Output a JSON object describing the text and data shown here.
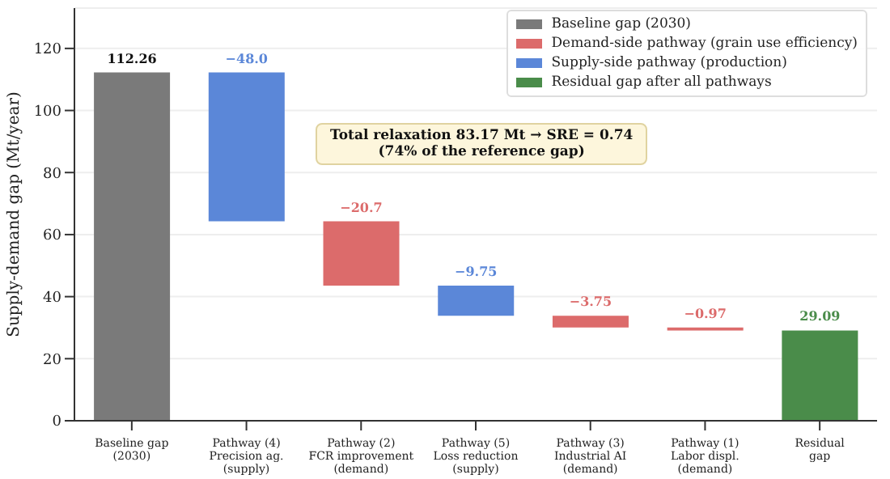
{
  "chart_data": {
    "type": "bar",
    "ylabel": "Supply-demand gap (Mt/year)",
    "categories": [
      "Baseline gap\n(2030)",
      "Pathway (4)\nPrecision ag.\n(supply)",
      "Pathway (2)\nFCR improvement\n(demand)",
      "Pathway (5)\nLoss reduction\n(supply)",
      "Pathway (3)\nIndustrial AI\n(demand)",
      "Pathway (1)\nLabor displ.\n(demand)",
      "Residual\ngap"
    ],
    "series": [
      {
        "name": "Baseline gap (2030)",
        "color": "#7a7a7a",
        "values": [
          112.26,
          null,
          null,
          null,
          null,
          null,
          null
        ],
        "base": [
          0,
          null,
          null,
          null,
          null,
          null,
          null
        ],
        "value_labels": [
          "112.26",
          null,
          null,
          null,
          null,
          null,
          null
        ]
      },
      {
        "name": "Demand-side pathway (grain use efficiency)",
        "color": "#dc6b6b",
        "values": [
          null,
          null,
          -20.7,
          null,
          -3.75,
          -0.97,
          null
        ],
        "base": [
          null,
          null,
          64.26,
          null,
          33.81,
          30.06,
          null
        ],
        "value_labels": [
          null,
          null,
          "−20.7",
          null,
          "−3.75",
          "−0.97",
          null
        ]
      },
      {
        "name": "Supply-side pathway (production)",
        "color": "#5b87d8",
        "values": [
          null,
          -48.0,
          null,
          -9.75,
          null,
          null,
          null
        ],
        "base": [
          null,
          112.26,
          null,
          43.56,
          null,
          null,
          null
        ],
        "value_labels": [
          null,
          "−48.0",
          null,
          "−9.75",
          null,
          null,
          null
        ]
      },
      {
        "name": "Residual gap after all pathways",
        "color": "#4a8c4a",
        "values": [
          null,
          null,
          null,
          null,
          null,
          null,
          29.09
        ],
        "base": [
          null,
          null,
          null,
          null,
          null,
          null,
          0
        ],
        "value_labels": [
          null,
          null,
          null,
          null,
          null,
          null,
          "29.09"
        ]
      }
    ],
    "ylim": [
      0,
      133
    ],
    "yticks": [
      0,
      20,
      40,
      60,
      80,
      100,
      120
    ],
    "grid": "y",
    "legend": "top right",
    "annotations": [
      "Total relaxation 83.17 Mt → SRE = 0.74\n(74% of the reference gap)"
    ]
  }
}
